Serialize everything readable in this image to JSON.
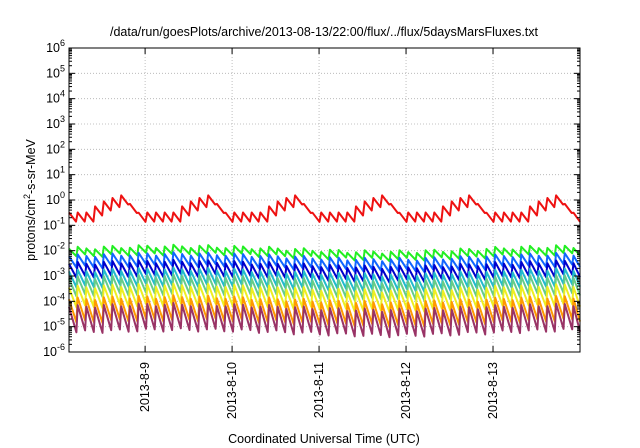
{
  "chart_data": {
    "type": "line",
    "title": "/data/run/goesPlots/archive/2013-08-13/22:00/flux/../flux/5daysMarsFluxes.txt",
    "xlabel": "Coordinated Universal Time (UTC)",
    "ylabel": {
      "pre": "protons/cm",
      "sup": "2",
      "post": "-s-sr-MeV"
    },
    "y_scale": "log",
    "ylim": [
      1e-06,
      1000000.0
    ],
    "y_ticks": [
      {
        "base": "10",
        "exp": "-6"
      },
      {
        "base": "10",
        "exp": "-5"
      },
      {
        "base": "10",
        "exp": "-4"
      },
      {
        "base": "10",
        "exp": "-3"
      },
      {
        "base": "10",
        "exp": "-2"
      },
      {
        "base": "10",
        "exp": "-1"
      },
      {
        "base": "10",
        "exp": "0"
      },
      {
        "base": "10",
        "exp": "1"
      },
      {
        "base": "10",
        "exp": "2"
      },
      {
        "base": "10",
        "exp": "3"
      },
      {
        "base": "10",
        "exp": "4"
      },
      {
        "base": "10",
        "exp": "5"
      },
      {
        "base": "10",
        "exp": "6"
      }
    ],
    "xlim": [
      "2013-08-08 03:00",
      "2013-08-14 00:00"
    ],
    "x_ticks": [
      "2013-8-9",
      "2013-8-10",
      "2013-8-11",
      "2013-8-12",
      "2013-8-13"
    ],
    "grid": true,
    "legend": "none",
    "series": [
      {
        "color": "#ee1111",
        "kind": "red",
        "base": 0.2,
        "amp_hi": 1.6,
        "amp_lo": 0.7
      },
      {
        "color": "#22ee22",
        "kind": "saw",
        "base": 0.012,
        "ratio": 2.0
      },
      {
        "color": "#1166ff",
        "kind": "saw",
        "base": 0.006,
        "ratio": 2.8
      },
      {
        "color": "#0000cc",
        "kind": "saw",
        "base": 0.003,
        "ratio": 3.5
      },
      {
        "color": "#22bbcc",
        "kind": "saw",
        "base": 0.0015,
        "ratio": 4.2
      },
      {
        "color": "#66cc88",
        "kind": "saw",
        "base": 0.0008,
        "ratio": 5.0
      },
      {
        "color": "#eeee22",
        "kind": "saw",
        "base": 0.00035,
        "ratio": 6.0
      },
      {
        "color": "#ff9900",
        "kind": "saw",
        "base": 0.00012,
        "ratio": 8.0
      },
      {
        "color": "#993366",
        "kind": "saw",
        "base": 6e-05,
        "ratio": 10.0
      }
    ]
  }
}
